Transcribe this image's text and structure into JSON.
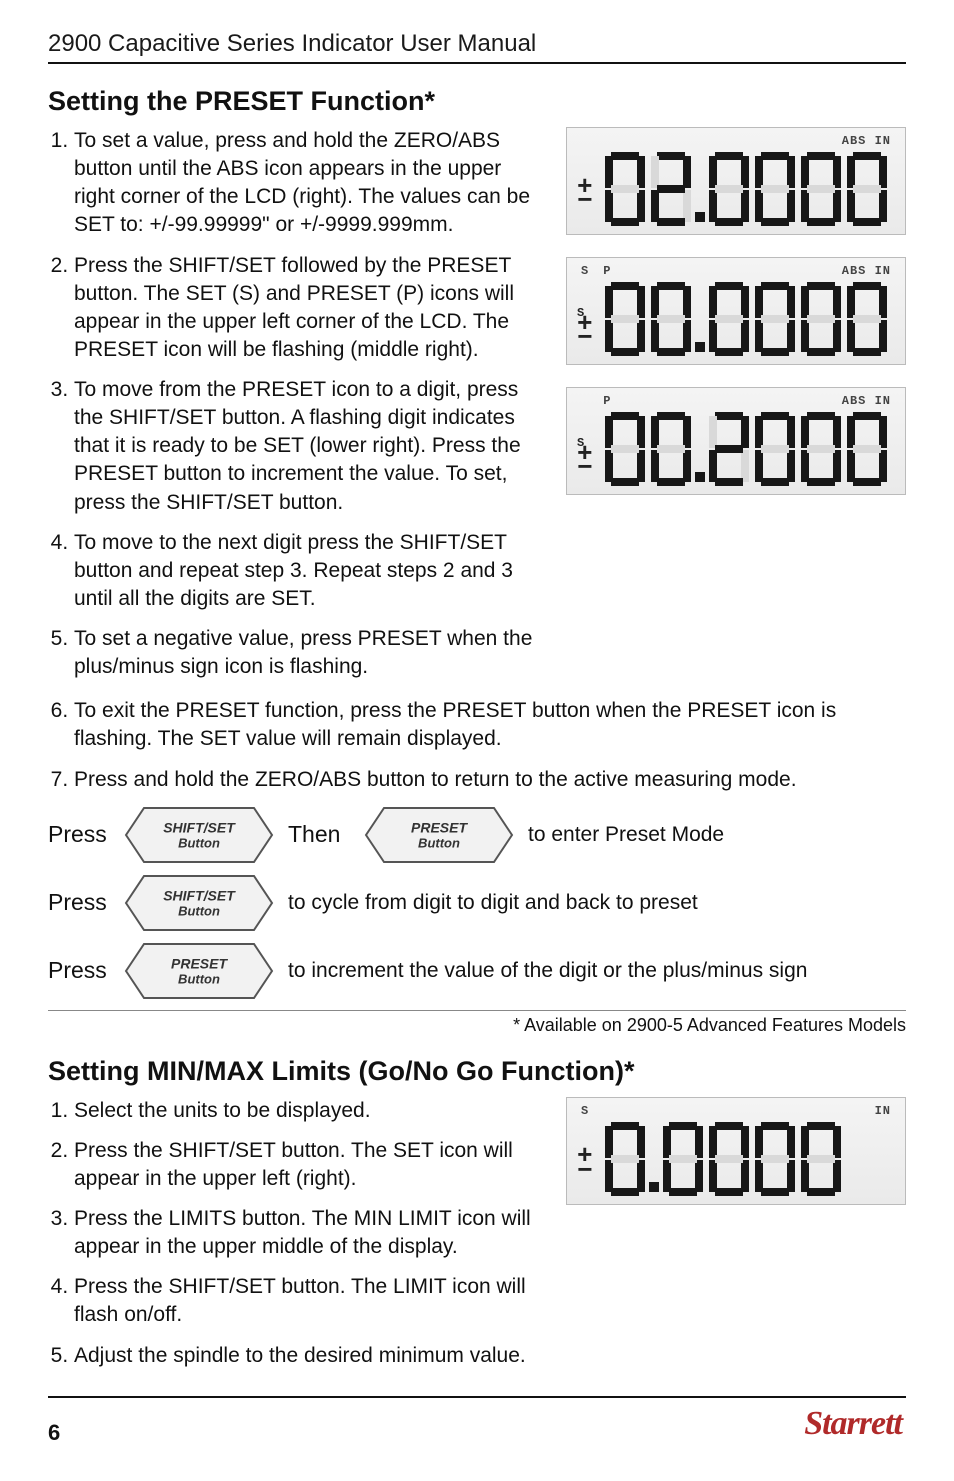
{
  "running_head": "2900 Capacitive Series Indicator User Manual",
  "section1": {
    "title": "Setting the PRESET Function*",
    "steps": [
      "To set a value, press and hold the ZERO/ABS button until the ABS icon appears in the upper right corner of the LCD (right). The values can be SET to: +/-99.99999\" or +/-9999.999mm.",
      "Press the SHIFT/SET followed by the PRESET button. The SET (S) and PRESET (P) icons will appear in the upper left corner of the LCD. The PRESET icon will be flashing (middle right).",
      "To move from the PRESET icon to a digit, press the SHIFT/SET button. A flashing digit indicates that it is ready to be SET (lower right). Press the PRESET button to increment the value. To set, press the SHIFT/SET button.",
      "To move to the next digit press the SHIFT/SET button and repeat step 3. Repeat steps 2 and 3 until all the digits are SET.",
      "To set a negative value, press PRESET when the plus/minus sign icon is flashing.",
      "To exit the PRESET function, press the PRESET button when the PRESET icon is flashing. The SET value will remain displayed.",
      "Press and hold the ZERO/ABS button to return to the active measuring mode."
    ]
  },
  "buttons": {
    "shift_set_line1": "SHIFT/SET",
    "shift_set_line2": "Button",
    "preset_line1": "PRESET",
    "preset_line2": "Button",
    "press_label": "Press",
    "then_label": "Then",
    "row1_after": "to enter Preset Mode",
    "row2_after": "to cycle from digit to digit and back to preset",
    "row3_after": "to increment the value of the digit or the plus/minus sign"
  },
  "footnote": "* Available on 2900-5 Advanced Features Models",
  "section2": {
    "title": "Setting MIN/MAX Limits (Go/No Go Function)*",
    "steps": [
      "Select the units to be displayed.",
      "Press the SHIFT/SET button. The SET icon will appear in the upper left (right).",
      "Press the LIMITS button. The MIN LIMIT icon will appear in the upper middle of the display.",
      "Press the SHIFT/SET button. The LIMIT icon will flash on/off.",
      "Adjust the spindle to the desired minimum value."
    ]
  },
  "lcd": {
    "box1": {
      "top_left": "",
      "top_right": "ABS IN",
      "side_marks": "±",
      "digits": "02.0000",
      "s_mark": "",
      "p_mark": ""
    },
    "box2": {
      "top_left": "",
      "top_right": "ABS IN",
      "side_marks": "±",
      "digits": "00.0000",
      "s_mark": "S",
      "p_mark": "P"
    },
    "box3": {
      "top_left": "",
      "top_right": "ABS IN",
      "side_marks": "±",
      "digits": "00.2000",
      "s_mark": "S",
      "p_mark": "P"
    },
    "box4": {
      "top_left": "S",
      "top_right": "IN",
      "side_marks": "±",
      "digits": "0.0000",
      "s_mark": "S",
      "p_mark": ""
    }
  },
  "page_number": "6",
  "brand": "Starrett",
  "colors": {
    "seg_on": "#171717",
    "seg_off": "#d9d9d9",
    "lcd_bg_top": "#f4f4f4",
    "lcd_bg_bottom": "#eaeaea",
    "lcd_border": "#bbbbbb",
    "brand_color": "#b02a2a",
    "text_color": "#111111",
    "rule_color": "#111111"
  }
}
